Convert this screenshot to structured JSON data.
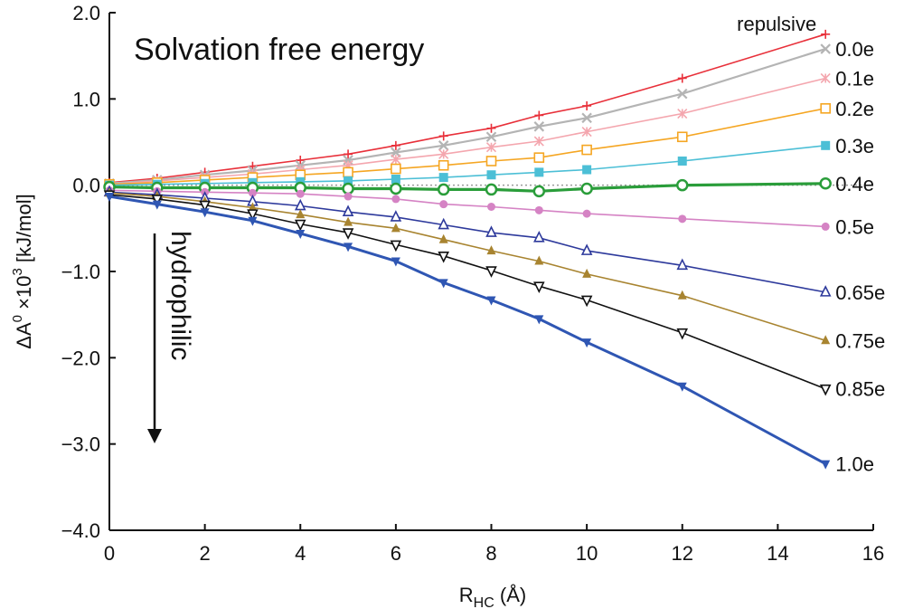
{
  "chart_data": {
    "type": "line",
    "title": "Solvation free energy",
    "xlabel": {
      "main": "R",
      "sub": "HC",
      "unit": " (Å)"
    },
    "ylabel": {
      "delta": "ΔA",
      "sup1": "0",
      "mid": " ×10",
      "sup2": "3",
      "unit": " [kJ/mol]"
    },
    "xlim": [
      0,
      16
    ],
    "ylim": [
      -4.0,
      2.0
    ],
    "xticks": [
      "0",
      "2",
      "4",
      "6",
      "8",
      "10",
      "12",
      "14",
      "16"
    ],
    "yticks": [
      "2.0",
      "1.0",
      "0.0",
      "−1.0",
      "−2.0",
      "−3.0",
      "−4.0"
    ],
    "annotation": "hydrophilic",
    "x": [
      0,
      1,
      2,
      3,
      4,
      5,
      6,
      7,
      8,
      9,
      10,
      12,
      15
    ],
    "series": [
      {
        "name": "repulsive",
        "color": "#e8303a",
        "marker": "plus",
        "width": 1.6,
        "values": [
          0.03,
          0.08,
          0.15,
          0.22,
          0.29,
          0.36,
          0.46,
          0.57,
          0.66,
          0.81,
          0.92,
          1.24,
          1.75
        ]
      },
      {
        "name": "0.0e",
        "color": "#b4b4b4",
        "marker": "cross",
        "width": 2.2,
        "values": [
          0.02,
          0.06,
          0.12,
          0.17,
          0.23,
          0.29,
          0.38,
          0.46,
          0.56,
          0.68,
          0.78,
          1.06,
          1.58
        ]
      },
      {
        "name": "0.1e",
        "color": "#f4a6ae",
        "marker": "star",
        "width": 1.6,
        "values": [
          0.01,
          0.05,
          0.09,
          0.13,
          0.18,
          0.23,
          0.3,
          0.36,
          0.44,
          0.51,
          0.62,
          0.83,
          1.24
        ]
      },
      {
        "name": "0.2e",
        "color": "#f5a623",
        "marker": "square-open",
        "width": 1.6,
        "values": [
          0.01,
          0.03,
          0.06,
          0.09,
          0.12,
          0.15,
          0.19,
          0.23,
          0.28,
          0.32,
          0.41,
          0.56,
          0.89
        ]
      },
      {
        "name": "0.3e",
        "color": "#4cbfd6",
        "marker": "square-filled",
        "width": 1.6,
        "values": [
          0.0,
          0.01,
          0.02,
          0.03,
          0.04,
          0.05,
          0.07,
          0.09,
          0.12,
          0.15,
          0.18,
          0.28,
          0.46
        ]
      },
      {
        "name": "0.4e",
        "color": "#2a9d3a",
        "marker": "circle-open",
        "width": 3.2,
        "values": [
          -0.02,
          -0.03,
          -0.03,
          -0.03,
          -0.03,
          -0.04,
          -0.04,
          -0.05,
          -0.05,
          -0.07,
          -0.04,
          0.0,
          0.02
        ]
      },
      {
        "name": "0.5e",
        "color": "#d583c4",
        "marker": "circle-filled",
        "width": 1.6,
        "values": [
          -0.06,
          -0.07,
          -0.08,
          -0.09,
          -0.1,
          -0.13,
          -0.16,
          -0.22,
          -0.25,
          -0.29,
          -0.33,
          -0.39,
          -0.48
        ]
      },
      {
        "name": "0.65e",
        "color": "#2e3a9c",
        "marker": "triangle-open",
        "width": 1.6,
        "values": [
          -0.08,
          -0.11,
          -0.15,
          -0.19,
          -0.24,
          -0.31,
          -0.37,
          -0.46,
          -0.55,
          -0.61,
          -0.76,
          -0.93,
          -1.24
        ]
      },
      {
        "name": "0.75e",
        "color": "#a88430",
        "marker": "triangle-filled",
        "width": 1.6,
        "values": [
          -0.09,
          -0.13,
          -0.19,
          -0.26,
          -0.34,
          -0.43,
          -0.5,
          -0.63,
          -0.76,
          -0.88,
          -1.03,
          -1.28,
          -1.8
        ]
      },
      {
        "name": "0.85e",
        "color": "#111111",
        "marker": "triangle-down-open",
        "width": 1.6,
        "values": [
          -0.11,
          -0.16,
          -0.23,
          -0.33,
          -0.45,
          -0.55,
          -0.69,
          -0.82,
          -0.99,
          -1.17,
          -1.33,
          -1.71,
          -2.36
        ]
      },
      {
        "name": "1.0e",
        "color": "#2f56b3",
        "marker": "triangle-down-filled",
        "width": 3.0,
        "values": [
          -0.13,
          -0.22,
          -0.31,
          -0.41,
          -0.56,
          -0.71,
          -0.88,
          -1.13,
          -1.33,
          -1.55,
          -1.82,
          -2.33,
          -3.23
        ]
      }
    ]
  }
}
